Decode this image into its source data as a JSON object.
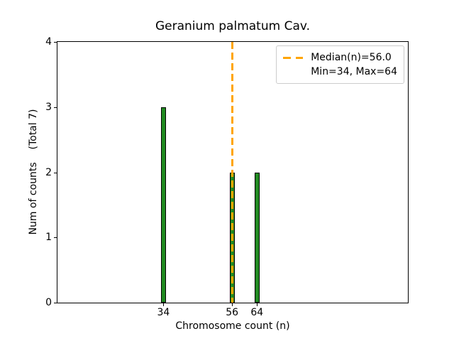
{
  "figure": {
    "title": "Geranium palmatum Cav.",
    "xlabel": "Chromosome count (n)",
    "ylabel": "Num of counts    (Total 7)"
  },
  "legend": {
    "line1": "Median(n)=56.0",
    "line2": "Min=34, Max=64"
  },
  "colors": {
    "bar_fill": "#228B22",
    "bar_edge": "#000000",
    "median_line": "#FFA500",
    "legend_border": "#CCCCCC",
    "axis": "#000000"
  },
  "chart_data": {
    "type": "bar",
    "title": "Geranium palmatum Cav.",
    "xlabel": "Chromosome count (n)",
    "ylabel": "Num of counts    (Total 7)",
    "categories": [
      34,
      56,
      64
    ],
    "values": [
      3,
      2,
      2
    ],
    "total_counts": 7,
    "median_n": 56.0,
    "min_n": 34,
    "max_n": 64,
    "xlim": [
      0,
      112.4
    ],
    "ylim": [
      0,
      4
    ],
    "xticks": [
      34,
      56,
      64
    ],
    "yticks": [
      0,
      1,
      2,
      3,
      4
    ],
    "grid": false,
    "legend_entries": [
      "Median(n)=56.0",
      "Min=34, Max=64"
    ],
    "legend_position": "upper right",
    "median_line_style": "dashed",
    "bar_color": "#228B22",
    "median_line_color": "#FFA500"
  }
}
